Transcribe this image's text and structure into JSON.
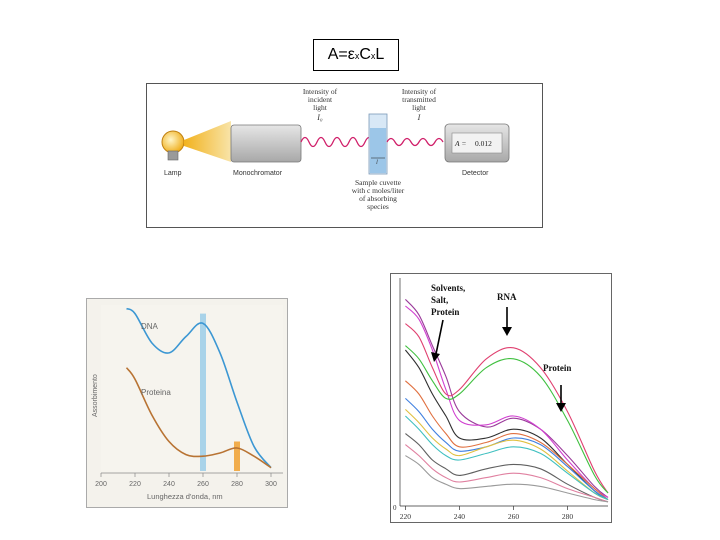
{
  "formula": {
    "a": "A=",
    "eps": "ε",
    "x1": "x",
    "c": "C",
    "x2": "x",
    "l": "L"
  },
  "spectrophotometer": {
    "lamp_label": "Lamp",
    "mono_label": "Monochromator",
    "incident_lines": [
      "Intensity of",
      "incident",
      "light"
    ],
    "incident_symbol": "I₀",
    "transmitted_lines": [
      "Intensity of",
      "transmitted",
      "light"
    ],
    "transmitted_symbol": "I",
    "cuvette_lines": [
      "Sample cuvette",
      "with c moles/liter",
      "of absorbing",
      "species"
    ],
    "cuvette_width_symbol": "l",
    "detector_label": "Detector",
    "readout_prefix": "A =",
    "readout_value": "0.012"
  },
  "chart_data": [
    {
      "type": "line",
      "ylabel": "Assorbimento",
      "xlabel": "Lunghezza d'onda, nm",
      "x_ticks": [
        "200",
        "220",
        "240",
        "260",
        "280",
        "300"
      ],
      "xlim": [
        200,
        300
      ],
      "ylim": [
        0,
        1
      ],
      "series": [
        {
          "name": "DNA",
          "color": "#3c97d3",
          "x": [
            215,
            220,
            230,
            240,
            250,
            260,
            270,
            280,
            290,
            300
          ],
          "y": [
            0.99,
            0.96,
            0.78,
            0.72,
            0.82,
            0.9,
            0.72,
            0.42,
            0.15,
            0.02
          ]
        },
        {
          "name": "Proteina",
          "color": "#b87333",
          "x": [
            215,
            220,
            230,
            240,
            250,
            260,
            270,
            280,
            290,
            300
          ],
          "y": [
            0.63,
            0.56,
            0.34,
            0.18,
            0.1,
            0.09,
            0.11,
            0.14,
            0.09,
            0.02
          ]
        }
      ],
      "highlight_bands": [
        {
          "x": 260,
          "color": "#9bcde8"
        },
        {
          "x": 280,
          "color": "#f0a030"
        }
      ]
    },
    {
      "type": "line",
      "x_ticks": [
        "220",
        "240",
        "260",
        "280"
      ],
      "y_ticks": [
        "0"
      ],
      "xlim": [
        218,
        295
      ],
      "ylim": [
        0,
        1
      ],
      "annotations": [
        {
          "lines": [
            "Solvents,",
            "Salt,",
            "Protein"
          ],
          "arrow_x": 232
        },
        {
          "lines": [
            "RNA"
          ],
          "arrow_x": 259
        },
        {
          "lines": [
            "Protein"
          ],
          "arrow_x": 280
        }
      ],
      "series": [
        {
          "color": "#9a3a9a",
          "x": [
            220,
            225,
            230,
            235,
            240,
            250,
            260,
            270,
            280,
            290,
            295
          ],
          "y": [
            0.93,
            0.86,
            0.72,
            0.58,
            0.42,
            0.35,
            0.39,
            0.34,
            0.22,
            0.08,
            0.03
          ]
        },
        {
          "color": "#d040d0",
          "x": [
            220,
            225,
            230,
            235,
            240,
            250,
            260,
            270,
            280,
            290,
            295
          ],
          "y": [
            0.9,
            0.84,
            0.7,
            0.52,
            0.38,
            0.36,
            0.4,
            0.34,
            0.2,
            0.07,
            0.03
          ]
        },
        {
          "color": "#e04070",
          "x": [
            220,
            225,
            230,
            235,
            240,
            250,
            260,
            270,
            280,
            290,
            295
          ],
          "y": [
            0.82,
            0.76,
            0.62,
            0.5,
            0.52,
            0.66,
            0.71,
            0.62,
            0.42,
            0.15,
            0.05
          ]
        },
        {
          "color": "#40c040",
          "x": [
            220,
            225,
            230,
            235,
            240,
            250,
            260,
            270,
            280,
            290,
            295
          ],
          "y": [
            0.72,
            0.66,
            0.56,
            0.48,
            0.5,
            0.62,
            0.66,
            0.58,
            0.38,
            0.13,
            0.05
          ]
        },
        {
          "color": "#303030",
          "x": [
            220,
            225,
            230,
            235,
            240,
            250,
            260,
            270,
            280,
            290,
            295
          ],
          "y": [
            0.7,
            0.62,
            0.5,
            0.4,
            0.3,
            0.3,
            0.34,
            0.3,
            0.18,
            0.06,
            0.02
          ]
        },
        {
          "color": "#e07040",
          "x": [
            220,
            225,
            230,
            235,
            240,
            250,
            260,
            270,
            280,
            290,
            295
          ],
          "y": [
            0.56,
            0.5,
            0.4,
            0.32,
            0.26,
            0.28,
            0.32,
            0.28,
            0.18,
            0.07,
            0.02
          ]
        },
        {
          "color": "#4080e0",
          "x": [
            220,
            225,
            230,
            235,
            240,
            250,
            260,
            270,
            280,
            290,
            295
          ],
          "y": [
            0.48,
            0.42,
            0.34,
            0.28,
            0.24,
            0.26,
            0.3,
            0.27,
            0.17,
            0.06,
            0.02
          ]
        },
        {
          "color": "#e0c040",
          "x": [
            220,
            225,
            230,
            235,
            240,
            250,
            260,
            270,
            280,
            290,
            295
          ],
          "y": [
            0.43,
            0.37,
            0.3,
            0.25,
            0.22,
            0.26,
            0.29,
            0.25,
            0.15,
            0.05,
            0.02
          ]
        },
        {
          "color": "#40c0c0",
          "x": [
            220,
            225,
            230,
            235,
            240,
            250,
            260,
            270,
            280,
            290,
            295
          ],
          "y": [
            0.4,
            0.34,
            0.27,
            0.22,
            0.2,
            0.23,
            0.26,
            0.23,
            0.14,
            0.05,
            0.02
          ]
        },
        {
          "color": "#606060",
          "x": [
            220,
            225,
            230,
            235,
            240,
            250,
            260,
            270,
            280,
            290,
            295
          ],
          "y": [
            0.32,
            0.27,
            0.2,
            0.16,
            0.13,
            0.16,
            0.18,
            0.16,
            0.09,
            0.03,
            0.01
          ]
        },
        {
          "color": "#e080a0",
          "x": [
            220,
            225,
            230,
            235,
            240,
            250,
            260,
            270,
            280,
            290,
            295
          ],
          "y": [
            0.27,
            0.22,
            0.16,
            0.12,
            0.1,
            0.12,
            0.14,
            0.12,
            0.07,
            0.03,
            0.01
          ]
        },
        {
          "color": "#9a9a9a",
          "x": [
            220,
            225,
            230,
            235,
            240,
            250,
            260,
            270,
            280,
            290,
            295
          ],
          "y": [
            0.22,
            0.18,
            0.12,
            0.09,
            0.07,
            0.08,
            0.09,
            0.08,
            0.05,
            0.02,
            0.01
          ]
        }
      ]
    }
  ]
}
